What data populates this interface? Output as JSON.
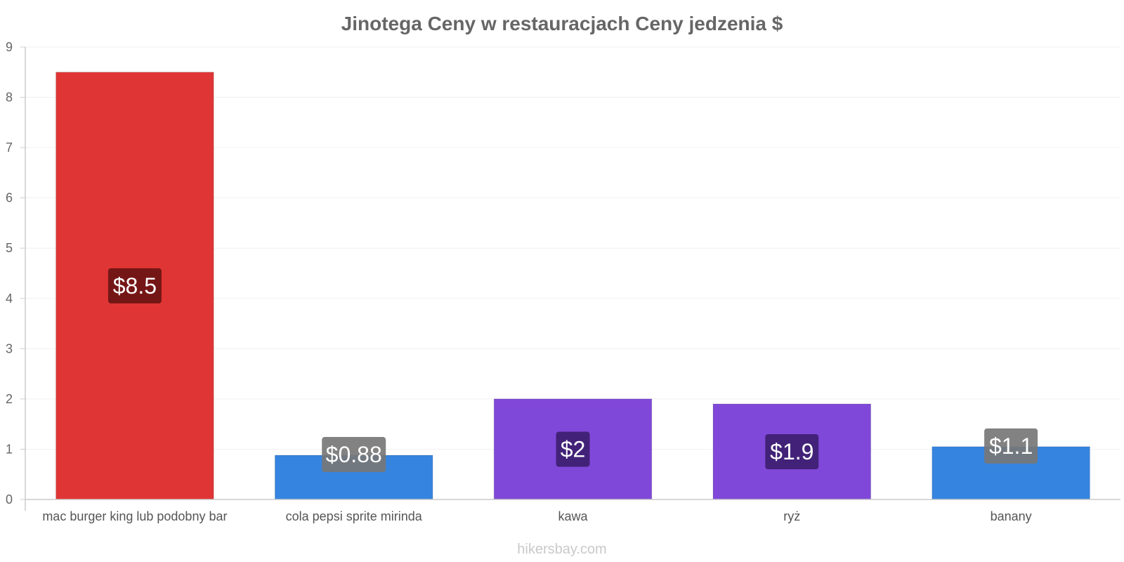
{
  "chart_data": {
    "type": "bar",
    "title": "Jinotega Ceny w restauracjach Ceny jedzenia $",
    "categories": [
      "mac burger king lub podobny bar",
      "cola pepsi sprite mirinda",
      "kawa",
      "ryż",
      "banany"
    ],
    "values": [
      8.5,
      0.88,
      2.0,
      1.9,
      1.05
    ],
    "value_labels": [
      "$8.5",
      "$0.88",
      "$2",
      "$1.9",
      "$1.1"
    ],
    "bar_colors": [
      "#e03535",
      "#3584e0",
      "#8048d9",
      "#8048d9",
      "#3584e0"
    ],
    "label_bg_colors": [
      "#6b1414",
      "#777777",
      "#3d2070",
      "#3d2070",
      "#777777"
    ],
    "ylim": [
      0,
      9
    ],
    "yticks": [
      0,
      1,
      2,
      3,
      4,
      5,
      6,
      7,
      8,
      9
    ],
    "xlabel": "",
    "ylabel": "",
    "grid": true,
    "legend": "none"
  },
  "watermark": "hikersbay.com"
}
